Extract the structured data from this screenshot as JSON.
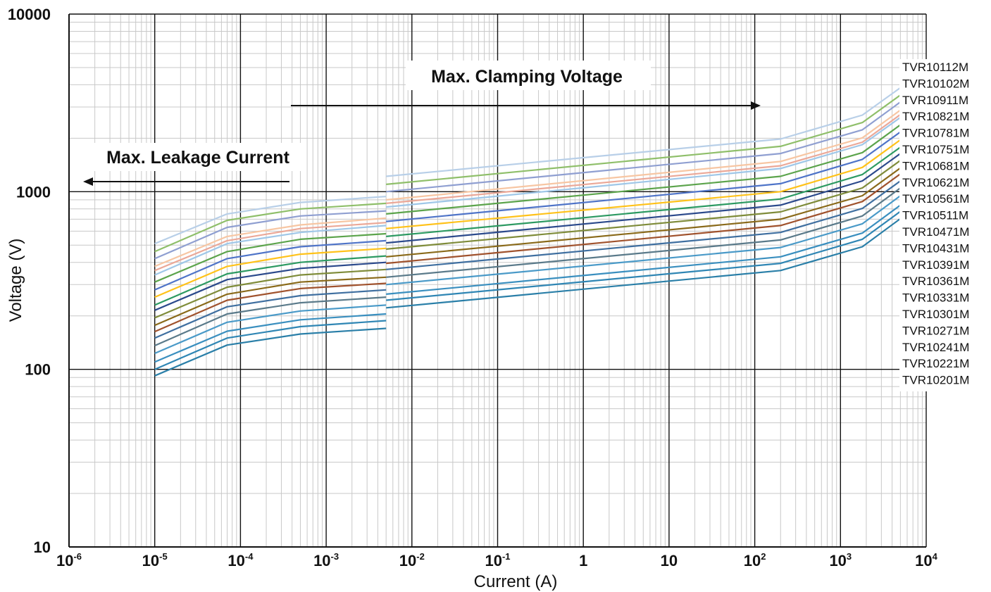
{
  "chart_data": {
    "type": "line",
    "x_scale": "log",
    "y_scale": "log",
    "xlim": [
      1e-06,
      10000
    ],
    "ylim": [
      10,
      10000
    ],
    "xlabel": "Current (A)",
    "ylabel": "Voltage (V)",
    "grid": true,
    "legend_placement": "right",
    "y_ticks": [
      {
        "value": 10,
        "label": "10"
      },
      {
        "value": 100,
        "label": "100"
      },
      {
        "value": 1000,
        "label": "1000"
      },
      {
        "value": 10000,
        "label": "10000"
      }
    ],
    "x_ticks": [
      {
        "value": 1e-06,
        "base": "10",
        "exp": "-6"
      },
      {
        "value": 1e-05,
        "base": "10",
        "exp": "-5"
      },
      {
        "value": 0.0001,
        "base": "10",
        "exp": "-4"
      },
      {
        "value": 0.001,
        "base": "10",
        "exp": "-3"
      },
      {
        "value": 0.01,
        "base": "10",
        "exp": "-2"
      },
      {
        "value": 0.1,
        "base": "10",
        "exp": "-1"
      },
      {
        "value": 1,
        "base": "1",
        "exp": ""
      },
      {
        "value": 10,
        "base": "10",
        "exp": ""
      },
      {
        "value": 100,
        "base": "10",
        "exp": "2"
      },
      {
        "value": 1000,
        "base": "10",
        "exp": "3"
      },
      {
        "value": 10000,
        "base": "10",
        "exp": "4"
      }
    ],
    "annotations": [
      {
        "text": "Max. Clamping  Voltage",
        "arrow": "right"
      },
      {
        "text": "Max. Leakage Current",
        "arrow": "left"
      }
    ],
    "leakage_x": [
      1e-05,
      7e-05,
      0.0005,
      0.005
    ],
    "clamp_x": [
      0.005,
      200,
      1800,
      5000
    ],
    "series": [
      {
        "name": "TVR10112M",
        "color": "#b8cfe8",
        "leakage": [
          510,
          750,
          870,
          940
        ],
        "clamp": [
          1220,
          1980,
          2700,
          3850
        ]
      },
      {
        "name": "TVR10102M",
        "color": "#8fbf6a",
        "leakage": [
          460,
          690,
          800,
          860
        ],
        "clamp": [
          1100,
          1800,
          2450,
          3500
        ]
      },
      {
        "name": "TVR10911M",
        "color": "#8f9fd1",
        "leakage": [
          420,
          630,
          730,
          780
        ],
        "clamp": [
          1000,
          1640,
          2230,
          3200
        ]
      },
      {
        "name": "TVR10821M",
        "color": "#f7c6a3",
        "leakage": [
          380,
          560,
          650,
          710
        ],
        "clamp": [
          900,
          1480,
          2010,
          2880
        ]
      },
      {
        "name": "TVR10781M",
        "color": "#eba898",
        "leakage": [
          360,
          530,
          620,
          670
        ],
        "clamp": [
          860,
          1400,
          1900,
          2720
        ]
      },
      {
        "name": "TVR10751M",
        "color": "#9fc7e8",
        "leakage": [
          340,
          510,
          590,
          645
        ],
        "clamp": [
          820,
          1350,
          1840,
          2620
        ]
      },
      {
        "name": "TVR10681M",
        "color": "#5ca44c",
        "leakage": [
          310,
          460,
          540,
          580
        ],
        "clamp": [
          750,
          1220,
          1660,
          2380
        ]
      },
      {
        "name": "TVR10621M",
        "color": "#4f74c8",
        "leakage": [
          280,
          420,
          490,
          530
        ],
        "clamp": [
          680,
          1110,
          1520,
          2170
        ]
      },
      {
        "name": "TVR10561M",
        "color": "#ffc21a",
        "leakage": [
          255,
          380,
          445,
          480
        ],
        "clamp": [
          620,
          1000,
          1370,
          1960
        ]
      },
      {
        "name": "TVR10511M",
        "color": "#2d9a62",
        "leakage": [
          230,
          345,
          400,
          435
        ],
        "clamp": [
          560,
          910,
          1250,
          1780
        ]
      },
      {
        "name": "TVR10471M",
        "color": "#2c4a8c",
        "leakage": [
          215,
          320,
          370,
          400
        ],
        "clamp": [
          515,
          840,
          1150,
          1640
        ]
      },
      {
        "name": "TVR10431M",
        "color": "#7f8c3a",
        "leakage": [
          195,
          290,
          340,
          365
        ],
        "clamp": [
          475,
          770,
          1050,
          1500
        ]
      },
      {
        "name": "TVR10391M",
        "color": "#8a6a1a",
        "leakage": [
          177,
          265,
          310,
          330
        ],
        "clamp": [
          430,
          700,
          950,
          1360
        ]
      },
      {
        "name": "TVR10361M",
        "color": "#a0522d",
        "leakage": [
          163,
          245,
          285,
          305
        ],
        "clamp": [
          395,
          645,
          880,
          1260
        ]
      },
      {
        "name": "TVR10331M",
        "color": "#3f6fa0",
        "leakage": [
          150,
          225,
          260,
          280
        ],
        "clamp": [
          365,
          590,
          805,
          1150
        ]
      },
      {
        "name": "TVR10301M",
        "color": "#5a7a8a",
        "leakage": [
          136,
          205,
          237,
          255
        ],
        "clamp": [
          330,
          535,
          730,
          1050
        ]
      },
      {
        "name": "TVR10271M",
        "color": "#4a9ac8",
        "leakage": [
          123,
          184,
          213,
          230
        ],
        "clamp": [
          300,
          485,
          660,
          950
        ]
      },
      {
        "name": "TVR10241M",
        "color": "#3a8fbf",
        "leakage": [
          110,
          164,
          190,
          205
        ],
        "clamp": [
          265,
          430,
          585,
          840
        ]
      },
      {
        "name": "TVR10221M",
        "color": "#2f86b4",
        "leakage": [
          100,
          150,
          174,
          188
        ],
        "clamp": [
          245,
          395,
          540,
          775
        ]
      },
      {
        "name": "TVR10201M",
        "color": "#2a7fa8",
        "leakage": [
          92,
          137,
          158,
          170
        ],
        "clamp": [
          222,
          360,
          490,
          705
        ]
      }
    ]
  }
}
